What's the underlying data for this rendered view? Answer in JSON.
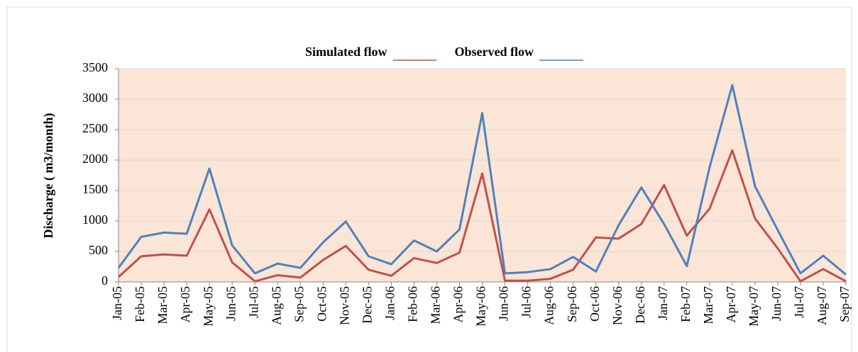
{
  "chart_data": {
    "type": "line",
    "y_label": "Discharge ( m3/month)",
    "categories": [
      "Jan-05",
      "Feb-05",
      "Mar-05",
      "Apr-05",
      "May-05",
      "Jun-05",
      "Jul-05",
      "Aug-05",
      "Sep-05",
      "Oct-05",
      "Nov-05",
      "Dec-05",
      "Jan-06",
      "Feb-06",
      "Mar-06",
      "Apr-06",
      "May-06",
      "Jun-06",
      "Jul-06",
      "Aug-06",
      "Sep-06",
      "Oct-06",
      "Nov-06",
      "Dec-06",
      "Jan-07",
      "Feb-07",
      "Mar-07",
      "Apr-07",
      "May-07",
      "Jun-07",
      "Jul-07",
      "Aug-07",
      "Sep-07"
    ],
    "series": [
      {
        "name": "Simulated flow",
        "color": "#c0504d",
        "values": [
          80,
          420,
          450,
          430,
          1190,
          320,
          10,
          110,
          70,
          360,
          590,
          200,
          100,
          390,
          310,
          480,
          1780,
          20,
          20,
          50,
          200,
          730,
          710,
          950,
          1590,
          760,
          1200,
          2160,
          1040,
          550,
          10,
          210,
          10
        ]
      },
      {
        "name": "Observed flow",
        "color": "#4f81bd",
        "values": [
          230,
          740,
          810,
          790,
          1860,
          600,
          140,
          300,
          230,
          650,
          990,
          420,
          290,
          680,
          500,
          860,
          2770,
          140,
          160,
          210,
          410,
          170,
          930,
          1550,
          950,
          260,
          1880,
          3230,
          1570,
          850,
          140,
          430,
          120
        ]
      }
    ],
    "ylim": [
      0,
      3500
    ],
    "yticks": [
      0,
      500,
      1000,
      1500,
      2000,
      2500,
      3000,
      3500
    ],
    "grid": true,
    "legend": "top"
  }
}
